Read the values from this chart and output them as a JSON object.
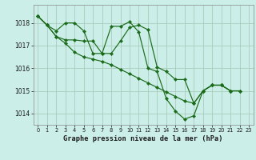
{
  "title": "Graphe pression niveau de la mer (hPa)",
  "background_color": "#cceee8",
  "grid_color": "#aaccbb",
  "line_color": "#1a6b1a",
  "marker_color": "#1a6b1a",
  "xlim": [
    -0.5,
    23.5
  ],
  "ylim": [
    1013.5,
    1018.8
  ],
  "yticks": [
    1014,
    1015,
    1016,
    1017,
    1018
  ],
  "xticks": [
    0,
    1,
    2,
    3,
    4,
    5,
    6,
    7,
    8,
    9,
    10,
    11,
    12,
    13,
    14,
    15,
    16,
    17,
    18,
    19,
    20,
    21,
    22,
    23
  ],
  "series": [
    [
      1018.3,
      1017.9,
      1017.65,
      1018.0,
      1018.0,
      1017.65,
      1016.65,
      1016.65,
      1017.85,
      1017.85,
      1018.05,
      1017.6,
      1016.0,
      1015.85,
      1014.65,
      1014.1,
      1013.75,
      1013.9,
      1015.0,
      1015.25,
      1015.25,
      1015.0,
      null,
      null
    ],
    [
      1018.3,
      1017.9,
      1017.4,
      1017.25,
      1017.25,
      1017.2,
      1017.2,
      1016.65,
      1016.65,
      1017.2,
      1017.8,
      1017.9,
      1017.7,
      1016.05,
      1015.85,
      1015.5,
      1015.5,
      1014.45,
      1015.0,
      1015.25,
      1015.25,
      1015.0,
      1015.0,
      null
    ],
    [
      1018.3,
      1017.9,
      1017.4,
      1017.1,
      1016.7,
      1016.5,
      1016.4,
      1016.3,
      1016.15,
      1015.95,
      1015.75,
      1015.55,
      1015.35,
      1015.15,
      1014.95,
      1014.75,
      1014.55,
      1014.45,
      1015.0,
      1015.25,
      1015.25,
      1015.0,
      1015.0,
      null
    ]
  ]
}
